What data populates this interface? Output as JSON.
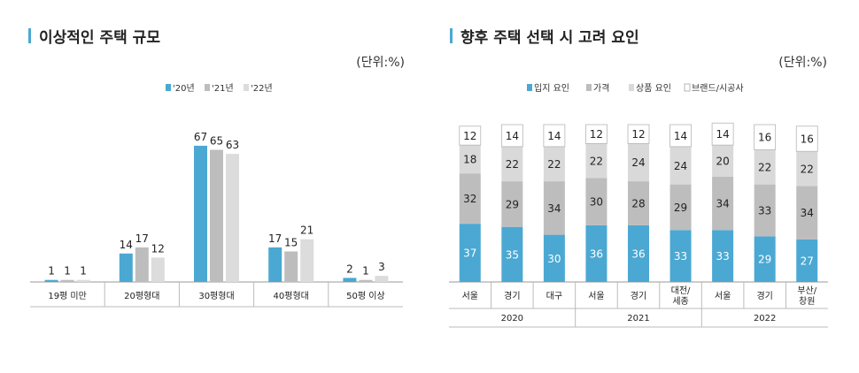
{
  "colors": {
    "accent": "#4ba8d2",
    "series_2020": "#4ba8d2",
    "series_2021": "#bdbdbd",
    "series_2022": "#dcdcdc",
    "location": "#4ba8d2",
    "price": "#bdbdbd",
    "product": "#d9d9d9",
    "brand": "#ffffff"
  },
  "chart_data": [
    {
      "type": "bar",
      "title": "이상적인 주택 규모",
      "unit": "(단위:%)",
      "categories": [
        "19평 미만",
        "20평형대",
        "30평형대",
        "40평형대",
        "50평 이상"
      ],
      "series": [
        {
          "name": "'20년",
          "values": [
            1,
            14,
            67,
            17,
            2
          ]
        },
        {
          "name": "'21년",
          "values": [
            1,
            17,
            65,
            15,
            1
          ]
        },
        {
          "name": "'22년",
          "values": [
            1,
            12,
            63,
            21,
            3
          ]
        }
      ],
      "ylim": [
        0,
        70
      ],
      "legend": "top-center",
      "grid": false
    },
    {
      "type": "bar",
      "stacked": true,
      "title": "향후 주택 선택 시 고려 요인",
      "unit": "(단위:%)",
      "groups": [
        {
          "label": "2020",
          "categories": [
            "서울",
            "경기",
            "대구"
          ]
        },
        {
          "label": "2021",
          "categories": [
            "서울",
            "경기",
            "대전/\n세종"
          ]
        },
        {
          "label": "2022",
          "categories": [
            "서울",
            "경기",
            "부산/\n창원"
          ]
        }
      ],
      "categories": [
        "서울",
        "경기",
        "대구",
        "서울",
        "경기",
        "대전/세종",
        "서울",
        "경기",
        "부산/창원"
      ],
      "series": [
        {
          "name": "입지 요인",
          "values": [
            37,
            35,
            30,
            36,
            36,
            33,
            33,
            29,
            27
          ]
        },
        {
          "name": "가격",
          "values": [
            32,
            29,
            34,
            30,
            28,
            29,
            34,
            33,
            34
          ]
        },
        {
          "name": "상품 요인",
          "values": [
            18,
            22,
            22,
            22,
            24,
            24,
            20,
            22,
            22
          ]
        },
        {
          "name": "브랜드/시공사",
          "values": [
            12,
            14,
            14,
            12,
            12,
            14,
            14,
            16,
            16
          ]
        }
      ],
      "ylim": [
        0,
        100
      ],
      "legend": "top-center",
      "grid": false
    }
  ]
}
